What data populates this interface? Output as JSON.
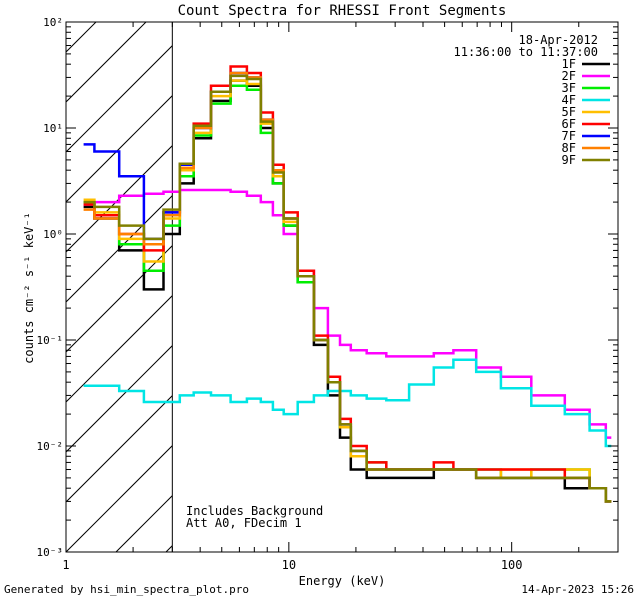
{
  "chart_data": {
    "type": "line",
    "title": "Count Spectra for RHESSI Front Segments",
    "xlabel": "Energy (keV)",
    "ylabel": "counts cm⁻² s⁻¹ keV⁻¹",
    "xscale": "log",
    "yscale": "log",
    "xlim": [
      1,
      300
    ],
    "ylim": [
      0.001,
      100
    ],
    "x_ticks": [
      "1",
      "10",
      "100"
    ],
    "y_ticks": [
      "10⁻³",
      "10⁻²",
      "10⁻¹",
      "10⁰",
      "10¹",
      "10²"
    ],
    "date": "18-Apr-2012",
    "time_range": "11:36:00 to 11:37:00",
    "annotation_lines": [
      "Includes Background",
      "Att A0, FDecim 1"
    ],
    "hatched_region": {
      "x_from": 1,
      "x_to": 3
    },
    "legend_position": "top-right",
    "energy_keV": [
      1.2,
      1.5,
      2.0,
      2.5,
      3.0,
      3.5,
      4.0,
      5.0,
      6.0,
      7.0,
      8.0,
      9.0,
      10.0,
      12.0,
      14.0,
      16.0,
      18.0,
      20.0,
      25.0,
      30.0,
      40.0,
      50.0,
      60.0,
      80.0,
      100.0,
      150.0,
      200.0,
      250.0,
      280.0
    ],
    "series": [
      {
        "name": "1F",
        "color": "#000000",
        "values": [
          1.8,
          1.4,
          0.7,
          0.3,
          1.0,
          3.0,
          8.0,
          18.0,
          28.0,
          25.0,
          10.0,
          3.0,
          1.2,
          0.35,
          0.09,
          0.03,
          0.012,
          0.006,
          0.005,
          0.005,
          0.005,
          0.006,
          0.006,
          0.005,
          0.005,
          0.005,
          0.004,
          0.004,
          0.003
        ]
      },
      {
        "name": "2F",
        "color": "#ff00ff",
        "values": [
          1.9,
          2.0,
          2.3,
          2.4,
          2.5,
          2.6,
          2.6,
          2.6,
          2.5,
          2.3,
          2.0,
          1.5,
          1.0,
          0.45,
          0.2,
          0.11,
          0.09,
          0.08,
          0.075,
          0.07,
          0.07,
          0.075,
          0.08,
          0.055,
          0.045,
          0.03,
          0.022,
          0.016,
          0.012
        ]
      },
      {
        "name": "3F",
        "color": "#00ee00",
        "values": [
          2.0,
          1.5,
          0.8,
          0.45,
          1.2,
          3.5,
          8.5,
          17.0,
          25.0,
          23.0,
          9.0,
          3.0,
          1.2,
          0.35,
          0.1,
          0.04,
          0.015,
          0.009,
          0.007,
          0.006,
          0.006,
          0.006,
          0.006,
          0.006,
          0.005,
          0.006,
          0.006,
          0.004,
          0.003
        ]
      },
      {
        "name": "4F",
        "color": "#00e5e5",
        "values": [
          0.037,
          0.037,
          0.033,
          0.026,
          0.026,
          0.03,
          0.032,
          0.03,
          0.026,
          0.028,
          0.026,
          0.022,
          0.02,
          0.026,
          0.03,
          0.033,
          0.033,
          0.03,
          0.028,
          0.027,
          0.038,
          0.055,
          0.065,
          0.05,
          0.035,
          0.024,
          0.02,
          0.014,
          0.01
        ]
      },
      {
        "name": "5F",
        "color": "#ffbf00",
        "values": [
          2.1,
          1.6,
          0.9,
          0.55,
          1.4,
          4.0,
          9.0,
          20.0,
          28.0,
          26.0,
          11.0,
          3.5,
          1.3,
          0.4,
          0.1,
          0.04,
          0.015,
          0.008,
          0.006,
          0.006,
          0.006,
          0.006,
          0.006,
          0.005,
          0.006,
          0.005,
          0.006,
          0.004,
          0.003
        ]
      },
      {
        "name": "6F",
        "color": "#ff0000",
        "values": [
          1.9,
          1.5,
          1.0,
          0.7,
          1.6,
          4.5,
          11.0,
          25.0,
          38.0,
          33.0,
          14.0,
          4.5,
          1.6,
          0.45,
          0.11,
          0.045,
          0.018,
          0.01,
          0.007,
          0.006,
          0.006,
          0.007,
          0.006,
          0.006,
          0.006,
          0.006,
          0.005,
          0.004,
          0.003
        ]
      },
      {
        "name": "7F",
        "color": "#0000ff",
        "values": [
          7.0,
          6.0,
          3.5,
          0.9,
          1.6,
          4.5,
          10.0,
          22.0,
          33.0,
          30.0,
          12.0,
          4.0,
          1.4,
          0.4,
          0.1,
          0.04,
          0.016,
          0.009,
          0.006,
          0.006,
          0.006,
          0.006,
          0.006,
          0.005,
          0.005,
          0.005,
          0.005,
          0.004,
          0.003
        ]
      },
      {
        "name": "8F",
        "color": "#ff8000",
        "values": [
          1.7,
          1.4,
          1.0,
          0.8,
          1.5,
          4.2,
          10.0,
          22.0,
          33.0,
          30.0,
          12.0,
          4.0,
          1.4,
          0.4,
          0.1,
          0.04,
          0.016,
          0.009,
          0.006,
          0.006,
          0.006,
          0.006,
          0.006,
          0.005,
          0.005,
          0.005,
          0.005,
          0.004,
          0.003
        ]
      },
      {
        "name": "9F",
        "color": "#808000",
        "values": [
          2.0,
          1.8,
          1.2,
          0.9,
          1.7,
          4.6,
          10.5,
          22.0,
          31.0,
          29.0,
          11.5,
          3.8,
          1.4,
          0.4,
          0.1,
          0.04,
          0.016,
          0.009,
          0.006,
          0.006,
          0.006,
          0.006,
          0.006,
          0.005,
          0.005,
          0.005,
          0.005,
          0.004,
          0.003
        ]
      }
    ]
  },
  "footer": {
    "generated_by": "Generated by hsi_min_spectra_plot.pro",
    "timestamp": "14-Apr-2023 15:26"
  }
}
